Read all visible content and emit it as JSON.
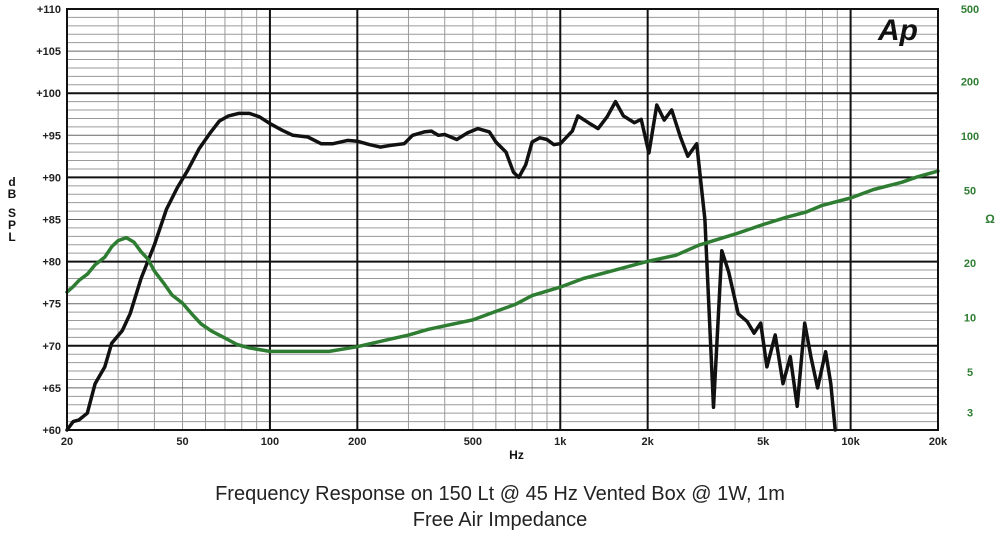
{
  "logo_text": "Ap",
  "captions": [
    "Frequency Response on 150 Lt @ 45 Hz Vented Box @ 1W, 1m",
    "Free Air Impedance"
  ],
  "colors": {
    "spl": "#111111",
    "impedance": "#2e7d32",
    "grid_major": "#111111",
    "grid_minor": "#9a9a9a"
  },
  "chart_data": {
    "type": "line",
    "title": "Frequency Response on 150 Lt @ 45 Hz Vented Box @ 1W, 1m",
    "subtitle": "Free Air Impedance",
    "xlabel": "Hz",
    "ylabel": "dB SPL",
    "y2label": "Ω",
    "x_scale": "log",
    "xlim": [
      20,
      20000
    ],
    "ylim": [
      60,
      110
    ],
    "y2_scale": "log",
    "y2lim": [
      2.4,
      500
    ],
    "grid": true,
    "x_ticks": [
      {
        "value": 20,
        "label": "20"
      },
      {
        "value": 50,
        "label": "50"
      },
      {
        "value": 100,
        "label": "100"
      },
      {
        "value": 200,
        "label": "200"
      },
      {
        "value": 500,
        "label": "500"
      },
      {
        "value": 1000,
        "label": "1k"
      },
      {
        "value": 2000,
        "label": "2k"
      },
      {
        "value": 5000,
        "label": "5k"
      },
      {
        "value": 10000,
        "label": "10k"
      },
      {
        "value": 20000,
        "label": "20k"
      }
    ],
    "y_ticks": [
      {
        "value": 110,
        "label": "+110"
      },
      {
        "value": 105,
        "label": "+105"
      },
      {
        "value": 100,
        "label": "+100"
      },
      {
        "value": 95,
        "label": "+95"
      },
      {
        "value": 90,
        "label": "+90"
      },
      {
        "value": 85,
        "label": "+85"
      },
      {
        "value": 80,
        "label": "+80"
      },
      {
        "value": 75,
        "label": "+75"
      },
      {
        "value": 70,
        "label": "+70"
      },
      {
        "value": 65,
        "label": "+65"
      },
      {
        "value": 60,
        "label": "+60"
      }
    ],
    "y2_ticks": [
      {
        "value": 500,
        "label": "500"
      },
      {
        "value": 200,
        "label": "200"
      },
      {
        "value": 100,
        "label": "100"
      },
      {
        "value": 50,
        "label": "50"
      },
      {
        "value": 20,
        "label": "20"
      },
      {
        "value": 10,
        "label": "10"
      },
      {
        "value": 5,
        "label": "5"
      },
      {
        "value": 3,
        "label": "3"
      }
    ],
    "series": [
      {
        "axis": "left",
        "points": [
          [
            20,
            60.0
          ],
          [
            21,
            61.0
          ],
          [
            22,
            61.2
          ],
          [
            23.5,
            62.0
          ],
          [
            25,
            65.5
          ],
          [
            27,
            67.5
          ],
          [
            28.5,
            70.3
          ],
          [
            31,
            71.8
          ],
          [
            33,
            73.8
          ],
          [
            36,
            78.0
          ],
          [
            40,
            82.0
          ],
          [
            44,
            86.2
          ],
          [
            48,
            88.8
          ],
          [
            52,
            90.8
          ],
          [
            57,
            93.4
          ],
          [
            62,
            95.2
          ],
          [
            67,
            96.7
          ],
          [
            72,
            97.3
          ],
          [
            78,
            97.6
          ],
          [
            85,
            97.6
          ],
          [
            92,
            97.2
          ],
          [
            100,
            96.4
          ],
          [
            110,
            95.6
          ],
          [
            120,
            95.0
          ],
          [
            135,
            94.8
          ],
          [
            150,
            94.0
          ],
          [
            165,
            94.0
          ],
          [
            185,
            94.4
          ],
          [
            200,
            94.3
          ],
          [
            220,
            93.9
          ],
          [
            240,
            93.6
          ],
          [
            260,
            93.8
          ],
          [
            290,
            94.0
          ],
          [
            310,
            95.0
          ],
          [
            340,
            95.4
          ],
          [
            360,
            95.5
          ],
          [
            380,
            95.0
          ],
          [
            400,
            95.1
          ],
          [
            440,
            94.5
          ],
          [
            480,
            95.3
          ],
          [
            520,
            95.8
          ],
          [
            570,
            95.4
          ],
          [
            600,
            94.2
          ],
          [
            650,
            93.0
          ],
          [
            690,
            90.6
          ],
          [
            720,
            90.0
          ],
          [
            760,
            91.5
          ],
          [
            800,
            94.2
          ],
          [
            850,
            94.7
          ],
          [
            900,
            94.5
          ],
          [
            950,
            93.9
          ],
          [
            1000,
            94.0
          ],
          [
            1100,
            95.5
          ],
          [
            1150,
            97.3
          ],
          [
            1250,
            96.5
          ],
          [
            1350,
            95.8
          ],
          [
            1450,
            97.2
          ],
          [
            1550,
            99.0
          ],
          [
            1650,
            97.3
          ],
          [
            1800,
            96.5
          ],
          [
            1900,
            96.9
          ],
          [
            2020,
            92.9
          ],
          [
            2150,
            98.6
          ],
          [
            2280,
            96.8
          ],
          [
            2420,
            98.0
          ],
          [
            2600,
            94.7
          ],
          [
            2750,
            92.5
          ],
          [
            2950,
            94.0
          ],
          [
            3150,
            85.0
          ],
          [
            3370,
            62.7
          ],
          [
            3600,
            81.3
          ],
          [
            3800,
            78.8
          ],
          [
            4100,
            73.8
          ],
          [
            4400,
            72.9
          ],
          [
            4650,
            71.5
          ],
          [
            4900,
            72.7
          ],
          [
            5150,
            67.5
          ],
          [
            5500,
            71.3
          ],
          [
            5850,
            65.5
          ],
          [
            6200,
            68.7
          ],
          [
            6550,
            62.8
          ],
          [
            6950,
            72.7
          ],
          [
            7300,
            68.7
          ],
          [
            7700,
            65.0
          ],
          [
            8200,
            69.3
          ],
          [
            8550,
            65.5
          ],
          [
            8850,
            60.0
          ]
        ]
      },
      {
        "axis": "right",
        "points": [
          [
            20,
            13.8
          ],
          [
            21,
            14.8
          ],
          [
            22,
            16.0
          ],
          [
            23.5,
            17.3
          ],
          [
            25,
            19.5
          ],
          [
            27,
            21.5
          ],
          [
            28.5,
            24.5
          ],
          [
            30,
            26.5
          ],
          [
            32,
            27.5
          ],
          [
            34,
            26.0
          ],
          [
            36,
            23.0
          ],
          [
            38,
            21.0
          ],
          [
            40,
            18.0
          ],
          [
            43,
            15.5
          ],
          [
            46,
            13.3
          ],
          [
            50,
            12.0
          ],
          [
            54,
            10.4
          ],
          [
            58,
            9.2
          ],
          [
            63,
            8.4
          ],
          [
            70,
            7.7
          ],
          [
            77,
            7.1
          ],
          [
            85,
            6.8
          ],
          [
            100,
            6.5
          ],
          [
            120,
            6.5
          ],
          [
            160,
            6.5
          ],
          [
            200,
            6.9
          ],
          [
            250,
            7.5
          ],
          [
            300,
            8.0
          ],
          [
            350,
            8.6
          ],
          [
            400,
            9.0
          ],
          [
            500,
            9.7
          ],
          [
            600,
            10.8
          ],
          [
            700,
            11.8
          ],
          [
            800,
            13.2
          ],
          [
            1000,
            14.7
          ],
          [
            1200,
            16.4
          ],
          [
            1500,
            18.0
          ],
          [
            2000,
            20.4
          ],
          [
            2500,
            22.0
          ],
          [
            3000,
            25.0
          ],
          [
            4000,
            28.8
          ],
          [
            5000,
            32.5
          ],
          [
            6000,
            35.6
          ],
          [
            7000,
            38.0
          ],
          [
            8000,
            41.5
          ],
          [
            10000,
            45.5
          ],
          [
            12000,
            50.7
          ],
          [
            15000,
            55.5
          ],
          [
            17000,
            59.5
          ],
          [
            20000,
            64.0
          ]
        ]
      }
    ]
  }
}
